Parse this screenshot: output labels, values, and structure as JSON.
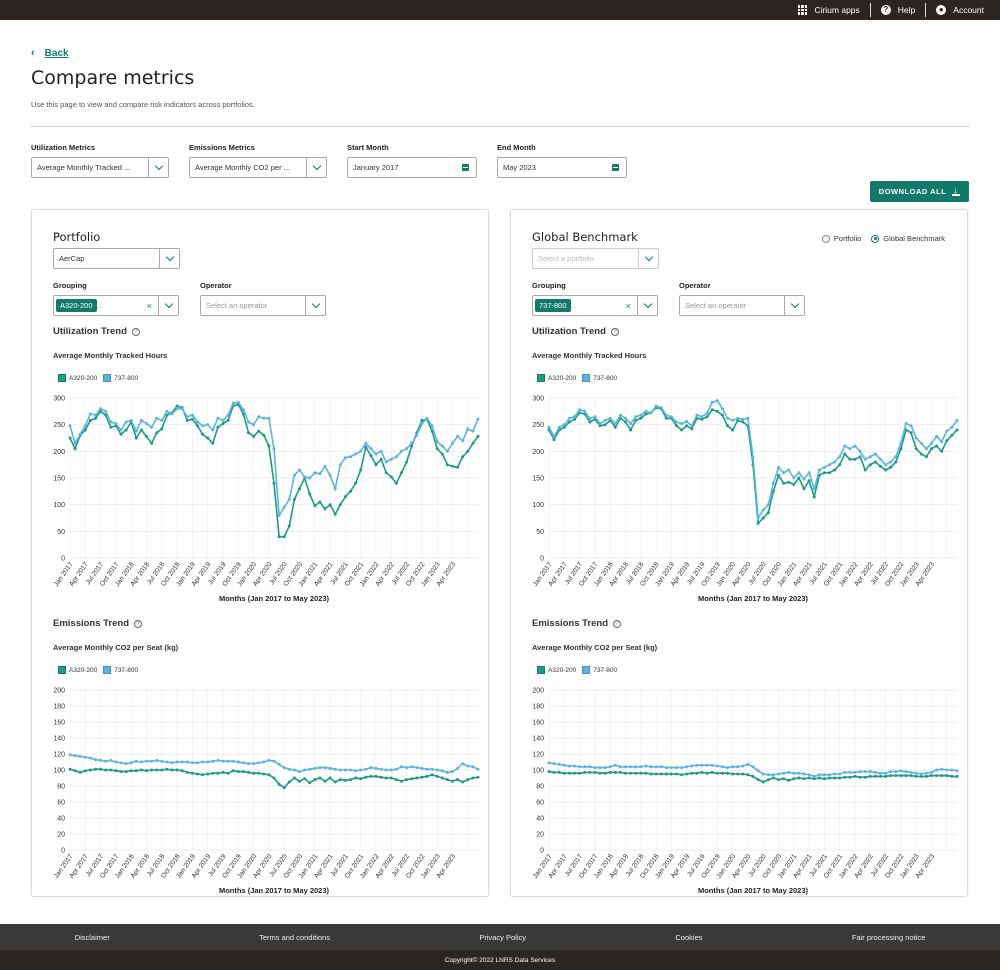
{
  "topbar": {
    "items": [
      {
        "label": "Cirium apps",
        "icon": "apps-grid-icon"
      },
      {
        "label": "Help",
        "icon": "help-icon"
      },
      {
        "label": "Account",
        "icon": "account-icon"
      }
    ]
  },
  "back_label": "Back",
  "page": {
    "title": "Compare metrics",
    "subtitle": "Use this page to view and compare risk indicators across portfolios."
  },
  "filters": {
    "utilization": {
      "label": "Utilization Metrics",
      "value": "Average Monthly Tracked ..."
    },
    "emissions": {
      "label": "Emissions Metrics",
      "value": "Average Monthly CO2 per ..."
    },
    "start": {
      "label": "Start Month",
      "value": "January 2017"
    },
    "end": {
      "label": "End Month",
      "value": "May 2023"
    }
  },
  "download_label": "DOWNLOAD ALL",
  "colors": {
    "accent": "#137a6b",
    "series1": "#1e9a86",
    "series2": "#5fb4dd"
  },
  "left": {
    "title": "Portfolio",
    "portfolio_value": "AerCap",
    "grouping_label": "Grouping",
    "grouping_chip": "A320-200",
    "operator_label": "Operator",
    "operator_placeholder": "Select an operator",
    "util_title": "Utilization Trend",
    "util_sub": "Average Monthly Tracked Hours",
    "em_title": "Emissions Trend",
    "em_sub": "Average Monthly CO2 per Seat (kg)",
    "legend": [
      "A320-200",
      "737-800"
    ],
    "xlabel": "Months (Jan 2017 to May 2023)"
  },
  "right": {
    "title": "Global Benchmark",
    "portfolio_placeholder": "Select a portfolio",
    "radio_portfolio": "Portfolio",
    "radio_benchmark": "Global Benchmark",
    "grouping_label": "Grouping",
    "grouping_chip": "737-800",
    "operator_label": "Operator",
    "operator_placeholder": "Select an operator",
    "util_title": "Utilization Trend",
    "util_sub": "Average Monthly Tracked Hours",
    "em_title": "Emissions Trend",
    "em_sub": "Average Monthly CO2 per Seat (kg)",
    "legend": [
      "A320-200",
      "737-800"
    ],
    "xlabel": "Months (Jan 2017 to May 2023)"
  },
  "footer": {
    "links": [
      "Disclaimer",
      "Terms and conditions",
      "Privacy Policy",
      "Cookies",
      "Fair processing notice"
    ],
    "copyright": "Copyright© 2022 LNRS Data Services"
  },
  "chart_data": [
    {
      "type": "line",
      "name": "left-utilization",
      "title": "Average Monthly Tracked Hours",
      "xlabel": "Months (Jan 2017 to May 2023)",
      "ylim": [
        0,
        300
      ],
      "yticks": [
        0,
        50,
        100,
        150,
        200,
        250,
        300
      ],
      "xticks": [
        "Jan 2017",
        "Apr 2017",
        "Jul 2017",
        "Oct 2017",
        "Jan 2018",
        "Apr 2018",
        "Jul 2018",
        "Oct 2018",
        "Jan 2019",
        "Apr 2019",
        "Jul 2019",
        "Oct 2019",
        "Jan 2020",
        "Apr 2020",
        "Jul 2020",
        "Oct 2020",
        "Jan 2021",
        "Apr 2021",
        "Jul 2021",
        "Oct 2021",
        "Jan 2022",
        "Apr 2022",
        "Jul 2022",
        "Oct 2022",
        "Jan 2023",
        "Apr 2023"
      ],
      "series": [
        {
          "name": "A320-200",
          "values": [
            225,
            205,
            230,
            240,
            258,
            262,
            275,
            268,
            245,
            248,
            232,
            240,
            255,
            225,
            240,
            228,
            215,
            235,
            242,
            268,
            272,
            285,
            282,
            258,
            260,
            248,
            232,
            225,
            215,
            245,
            252,
            258,
            285,
            288,
            270,
            235,
            228,
            238,
            230,
            210,
            140,
            40,
            40,
            60,
            110,
            130,
            150,
            120,
            98,
            105,
            92,
            100,
            82,
            100,
            115,
            125,
            140,
            165,
            208,
            192,
            175,
            185,
            160,
            152,
            140,
            160,
            180,
            210,
            235,
            258,
            260,
            238,
            205,
            195,
            175,
            172,
            170,
            190,
            200,
            215,
            228
          ]
        },
        {
          "name": "737-800",
          "values": [
            248,
            215,
            232,
            248,
            270,
            268,
            280,
            275,
            255,
            252,
            240,
            255,
            258,
            238,
            258,
            252,
            245,
            262,
            258,
            275,
            270,
            280,
            280,
            265,
            268,
            255,
            248,
            250,
            240,
            262,
            258,
            268,
            290,
            292,
            278,
            255,
            250,
            265,
            262,
            262,
            205,
            80,
            95,
            110,
            155,
            165,
            152,
            150,
            160,
            158,
            172,
            155,
            130,
            175,
            188,
            190,
            195,
            200,
            215,
            205,
            195,
            200,
            180,
            185,
            190,
            200,
            205,
            215,
            230,
            252,
            262,
            248,
            218,
            210,
            200,
            215,
            228,
            220,
            242,
            238,
            260
          ]
        }
      ]
    },
    {
      "type": "line",
      "name": "left-emissions",
      "title": "Average Monthly CO2 per Seat (kg)",
      "xlabel": "Months (Jan 2017 to May 2023)",
      "ylim": [
        0,
        200
      ],
      "yticks": [
        0,
        20,
        40,
        60,
        80,
        100,
        120,
        140,
        160,
        180,
        200
      ],
      "series": [
        {
          "name": "A320-200",
          "values": [
            101,
            99,
            97,
            99,
            100,
            101,
            101,
            100,
            100,
            99,
            98,
            98,
            99,
            99,
            100,
            99,
            100,
            100,
            100,
            101,
            100,
            100,
            99,
            97,
            96,
            95,
            94,
            95,
            96,
            96,
            97,
            96,
            99,
            98,
            98,
            97,
            96,
            96,
            95,
            94,
            90,
            82,
            78,
            85,
            90,
            86,
            89,
            84,
            88,
            90,
            86,
            90,
            85,
            88,
            87,
            88,
            90,
            89,
            91,
            92,
            92,
            91,
            90,
            90,
            88,
            86,
            88,
            89,
            90,
            91,
            92,
            94,
            92,
            90,
            88,
            86,
            88,
            85,
            88,
            90,
            91
          ]
        },
        {
          "name": "737-800",
          "values": [
            119,
            118,
            117,
            116,
            115,
            113,
            112,
            111,
            112,
            110,
            109,
            108,
            109,
            111,
            110,
            111,
            111,
            112,
            111,
            110,
            109,
            110,
            110,
            110,
            109,
            109,
            110,
            110,
            111,
            112,
            111,
            111,
            111,
            110,
            109,
            108,
            108,
            109,
            110,
            112,
            111,
            107,
            103,
            101,
            100,
            98,
            100,
            101,
            102,
            103,
            103,
            102,
            101,
            100,
            100,
            100,
            99,
            100,
            101,
            103,
            102,
            101,
            100,
            100,
            101,
            104,
            103,
            104,
            103,
            102,
            101,
            101,
            100,
            99,
            97,
            98,
            102,
            108,
            105,
            104,
            101
          ]
        }
      ]
    },
    {
      "type": "line",
      "name": "right-utilization",
      "title": "Average Monthly Tracked Hours",
      "xlabel": "Months (Jan 2017 to May 2023)",
      "ylim": [
        0,
        300
      ],
      "yticks": [
        0,
        50,
        100,
        150,
        200,
        250,
        300
      ],
      "series": [
        {
          "name": "A320-200",
          "values": [
            240,
            222,
            240,
            245,
            255,
            260,
            272,
            270,
            255,
            260,
            248,
            250,
            258,
            245,
            262,
            255,
            240,
            258,
            262,
            270,
            272,
            282,
            280,
            262,
            262,
            248,
            240,
            248,
            242,
            262,
            260,
            265,
            278,
            275,
            268,
            248,
            240,
            258,
            255,
            248,
            175,
            65,
            75,
            85,
            125,
            155,
            140,
            142,
            138,
            150,
            130,
            145,
            115,
            155,
            160,
            160,
            165,
            175,
            195,
            185,
            185,
            190,
            165,
            175,
            180,
            172,
            165,
            170,
            180,
            205,
            240,
            235,
            205,
            195,
            190,
            205,
            210,
            200,
            220,
            230,
            240
          ]
        },
        {
          "name": "737-800",
          "values": [
            245,
            228,
            245,
            250,
            262,
            265,
            278,
            275,
            262,
            265,
            252,
            258,
            262,
            252,
            268,
            262,
            252,
            265,
            268,
            275,
            272,
            285,
            282,
            268,
            265,
            255,
            252,
            256,
            248,
            268,
            265,
            272,
            292,
            295,
            280,
            262,
            258,
            262,
            260,
            262,
            190,
            75,
            90,
            100,
            140,
            170,
            160,
            165,
            150,
            160,
            148,
            160,
            130,
            165,
            170,
            175,
            180,
            190,
            210,
            205,
            210,
            200,
            185,
            190,
            195,
            185,
            175,
            180,
            190,
            215,
            252,
            248,
            225,
            215,
            205,
            215,
            228,
            218,
            238,
            245,
            258
          ]
        }
      ]
    },
    {
      "type": "line",
      "name": "right-emissions",
      "title": "Average Monthly CO2 per Seat (kg)",
      "xlabel": "Months (Jan 2017 to May 2023)",
      "ylim": [
        0,
        200
      ],
      "yticks": [
        0,
        20,
        40,
        60,
        80,
        100,
        120,
        140,
        160,
        180,
        200
      ],
      "series": [
        {
          "name": "A320-200",
          "values": [
            98,
            97,
            97,
            96,
            96,
            96,
            96,
            97,
            97,
            97,
            96,
            96,
            97,
            97,
            97,
            96,
            96,
            96,
            96,
            96,
            95,
            95,
            95,
            95,
            95,
            95,
            94,
            95,
            96,
            96,
            97,
            96,
            97,
            96,
            96,
            96,
            95,
            95,
            95,
            94,
            92,
            88,
            85,
            88,
            90,
            88,
            89,
            87,
            89,
            90,
            89,
            90,
            89,
            90,
            89,
            90,
            90,
            90,
            91,
            91,
            92,
            91,
            91,
            92,
            92,
            92,
            92,
            93,
            93,
            93,
            93,
            93,
            92,
            92,
            92,
            93,
            93,
            93,
            93,
            92,
            92
          ]
        },
        {
          "name": "737-800",
          "values": [
            109,
            108,
            107,
            106,
            105,
            105,
            104,
            104,
            104,
            103,
            103,
            103,
            104,
            106,
            104,
            104,
            104,
            104,
            104,
            105,
            104,
            104,
            104,
            103,
            103,
            103,
            103,
            104,
            105,
            106,
            106,
            106,
            106,
            105,
            104,
            103,
            104,
            104,
            105,
            107,
            104,
            99,
            95,
            94,
            94,
            95,
            96,
            97,
            96,
            96,
            95,
            94,
            92,
            94,
            94,
            94,
            95,
            95,
            97,
            97,
            97,
            98,
            98,
            98,
            97,
            96,
            96,
            98,
            98,
            99,
            98,
            97,
            96,
            95,
            96,
            97,
            100,
            101,
            100,
            100,
            99
          ]
        }
      ]
    }
  ]
}
